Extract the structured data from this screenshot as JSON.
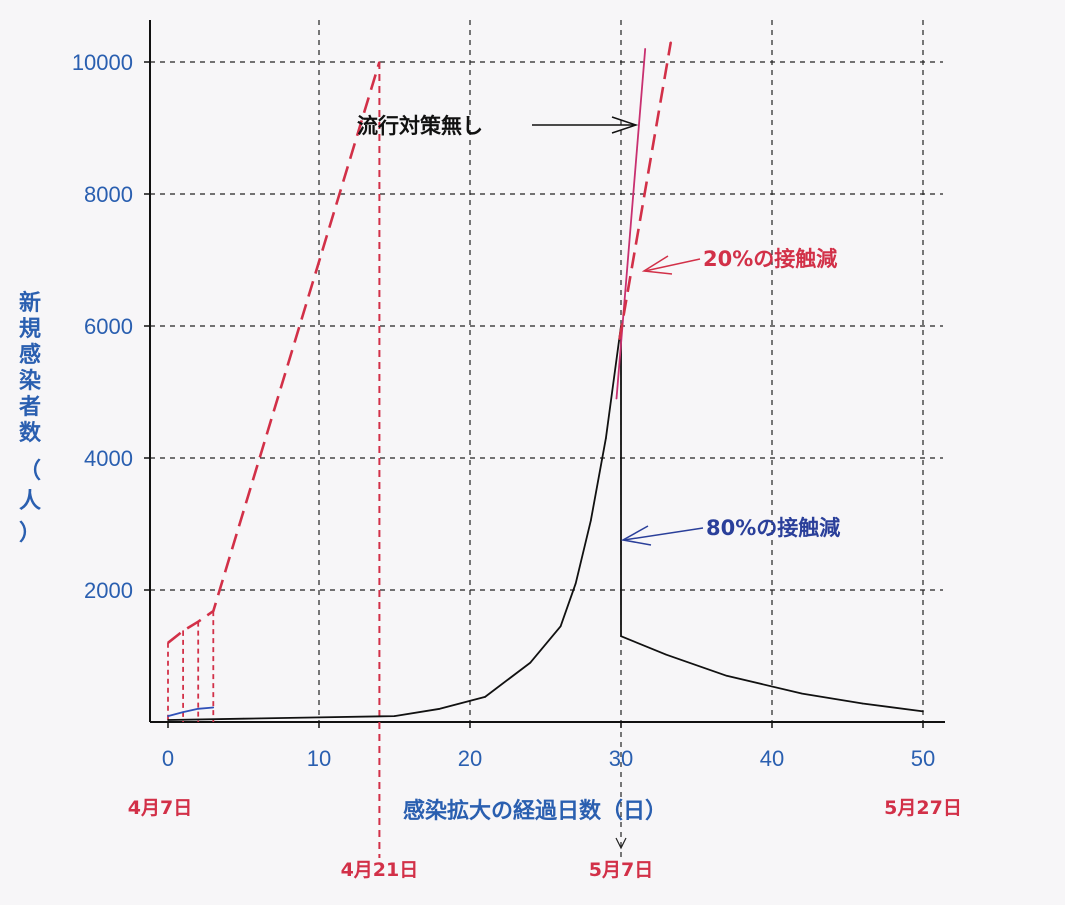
{
  "chart_data": {
    "type": "line",
    "xlabel": "感染拡大の経過日数（日）",
    "ylabel": "新規感染者数（人）",
    "xlim": [
      0,
      50
    ],
    "ylim": [
      0,
      10000
    ],
    "xticks": [
      0,
      10,
      20,
      30,
      40,
      50
    ],
    "xtick_labels": [
      "0",
      "10",
      "20",
      "30",
      "40",
      "50"
    ],
    "yticks": [
      2000,
      4000,
      6000,
      8000,
      10000
    ],
    "ytick_labels": [
      "2000",
      "4000",
      "6000",
      "8000",
      "10000"
    ],
    "grid": true,
    "date_labels": [
      {
        "x": 0,
        "text": "4月7日",
        "row": 1
      },
      {
        "x": 14,
        "text": "4月21日",
        "row": 2
      },
      {
        "x": 30,
        "text": "5月7日",
        "row": 2
      },
      {
        "x": 50,
        "text": "5月27日",
        "row": 1
      }
    ],
    "annotations": [
      {
        "text": "流行対策無し",
        "color": "#111111"
      },
      {
        "text": "20%の接触減",
        "color": "#d23048"
      },
      {
        "text": "80%の接触減",
        "color": "#2a3f9a"
      }
    ],
    "series": [
      {
        "color": "#111111",
        "style": "solid",
        "x": [
          0,
          5,
          10,
          15,
          18,
          21,
          24,
          26,
          27,
          28,
          29,
          30,
          30,
          33,
          37,
          42,
          46,
          50
        ],
        "y": [
          30,
          50,
          70,
          90,
          200,
          380,
          900,
          1450,
          2100,
          3050,
          4300,
          6000,
          1300,
          1020,
          700,
          430,
          280,
          160
        ]
      },
      {
        "color": "#d23048",
        "style": "dashed",
        "x": [
          0,
          1,
          2,
          3,
          14
        ],
        "y": [
          1200,
          1380,
          1520,
          1680,
          10000
        ]
      },
      {
        "color": "#c83070",
        "style": "solid",
        "x": [
          29.7,
          31.6
        ],
        "y": [
          4900,
          10200
        ]
      },
      {
        "color": "#d23048",
        "style": "dashed",
        "x": [
          29.9,
          33.3
        ],
        "y": [
          5800,
          10300
        ]
      },
      {
        "color": "#3050b8",
        "style": "solid",
        "x": [
          0,
          1,
          2,
          3
        ],
        "y": [
          90,
          150,
          200,
          220
        ]
      }
    ]
  }
}
